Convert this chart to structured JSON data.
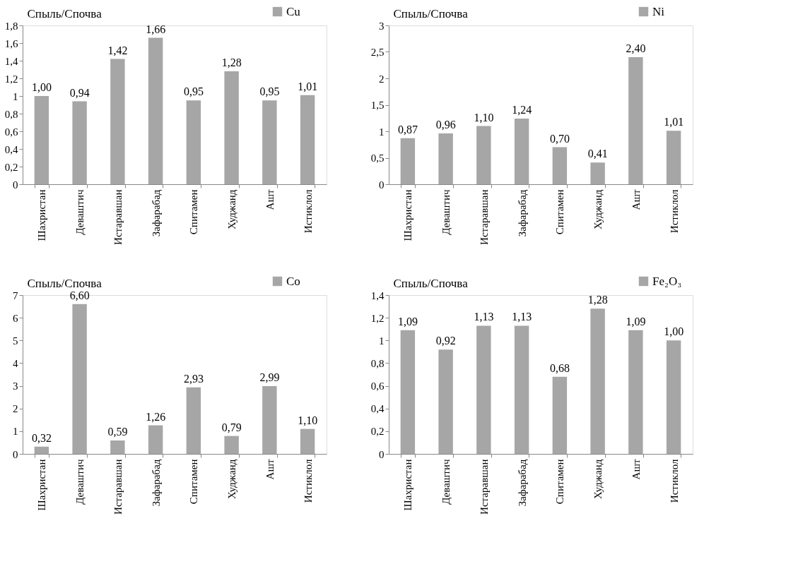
{
  "chart_data": [
    {
      "type": "bar",
      "ylabel": "Cпыль/Cпочва",
      "categories": [
        "Шахристан",
        "Деваштич",
        "Истаравшан",
        "Зафарабад",
        "Спитамен",
        "Худжанд",
        "Ашт",
        "Истиклол"
      ],
      "series": [
        {
          "name": "Cu",
          "color": "#a6a6a6",
          "values": [
            1.0,
            0.94,
            1.42,
            1.66,
            0.95,
            1.28,
            0.95,
            1.01
          ],
          "value_labels": [
            "1,00",
            "0,94",
            "1,42",
            "1,66",
            "0,95",
            "1,28",
            "0,95",
            "1,01"
          ]
        }
      ],
      "ylim": [
        0,
        1.8
      ],
      "yticks": [
        0,
        {
          "value": 0.2,
          "label": "0,2"
        },
        {
          "value": 0.4,
          "label": "0,4"
        },
        {
          "value": 0.6,
          "label": "0,6"
        },
        {
          "value": 0.8,
          "label": "0,8"
        },
        1,
        {
          "value": 1.2,
          "label": "1,2"
        },
        {
          "value": 1.4,
          "label": "1,4"
        },
        {
          "value": 1.6,
          "label": "1,6"
        },
        {
          "value": 1.8,
          "label": "1,8"
        }
      ],
      "grid": false,
      "legend": "top right"
    },
    {
      "type": "bar",
      "ylabel": "Cпыль/Cпочва",
      "categories": [
        "Шахристан",
        "Деваштич",
        "Истаравшан",
        "Зафарабад",
        "Спитамен",
        "Худжанд",
        "Ашт",
        "Истиклол"
      ],
      "series": [
        {
          "name": "Ni",
          "color": "#a6a6a6",
          "values": [
            0.87,
            0.96,
            1.1,
            1.24,
            0.7,
            0.41,
            2.4,
            1.01
          ],
          "value_labels": [
            "0,87",
            "0,96",
            "1,10",
            "1,24",
            "0,70",
            "0,41",
            "2,40",
            "1,01"
          ]
        }
      ],
      "ylim": [
        0,
        3
      ],
      "yticks": [
        0,
        {
          "value": 0.5,
          "label": "0,5"
        },
        1,
        {
          "value": 1.5,
          "label": "1,5"
        },
        2,
        {
          "value": 2.5,
          "label": "2,5"
        },
        3
      ],
      "grid": false,
      "legend": "top right"
    },
    {
      "type": "bar",
      "ylabel": "Cпыль/Cпочва",
      "categories": [
        "Шахристан",
        "Деваштич",
        "Истаравшан",
        "Зафарабад",
        "Спитамен",
        "Худжанд",
        "Ашт",
        "Истиклол"
      ],
      "series": [
        {
          "name": "Co",
          "color": "#a6a6a6",
          "values": [
            0.32,
            6.6,
            0.59,
            1.26,
            2.93,
            0.79,
            2.99,
            1.1
          ],
          "value_labels": [
            "0,32",
            "6,60",
            "0,59",
            "1,26",
            "2,93",
            "0,79",
            "2,99",
            "1,10"
          ]
        }
      ],
      "ylim": [
        0,
        7
      ],
      "yticks": [
        0,
        1,
        2,
        3,
        4,
        5,
        6,
        7
      ],
      "grid": false,
      "legend": "top right"
    },
    {
      "type": "bar",
      "ylabel": "Cпыль/Cпочва",
      "categories": [
        "Шахристан",
        "Деваштич",
        "Истаравшан",
        "Зафарабад",
        "Спитамен",
        "Худжанд",
        "Ашт",
        "Истиклол"
      ],
      "series": [
        {
          "name": "Fe₂O₃",
          "color": "#a6a6a6",
          "values": [
            1.09,
            0.92,
            1.13,
            1.13,
            0.68,
            1.28,
            1.09,
            1.0
          ],
          "value_labels": [
            "1,09",
            "0,92",
            "1,13",
            "1,13",
            "0,68",
            "1,28",
            "1,09",
            "1,00"
          ]
        }
      ],
      "ylim": [
        0,
        1.4
      ],
      "yticks": [
        0,
        {
          "value": 0.2,
          "label": "0,2"
        },
        {
          "value": 0.4,
          "label": "0,4"
        },
        {
          "value": 0.6,
          "label": "0,6"
        },
        {
          "value": 0.8,
          "label": "0,8"
        },
        1,
        {
          "value": 1.2,
          "label": "1,2"
        },
        {
          "value": 1.4,
          "label": "1,4"
        }
      ],
      "grid": false,
      "legend": "top right"
    }
  ]
}
